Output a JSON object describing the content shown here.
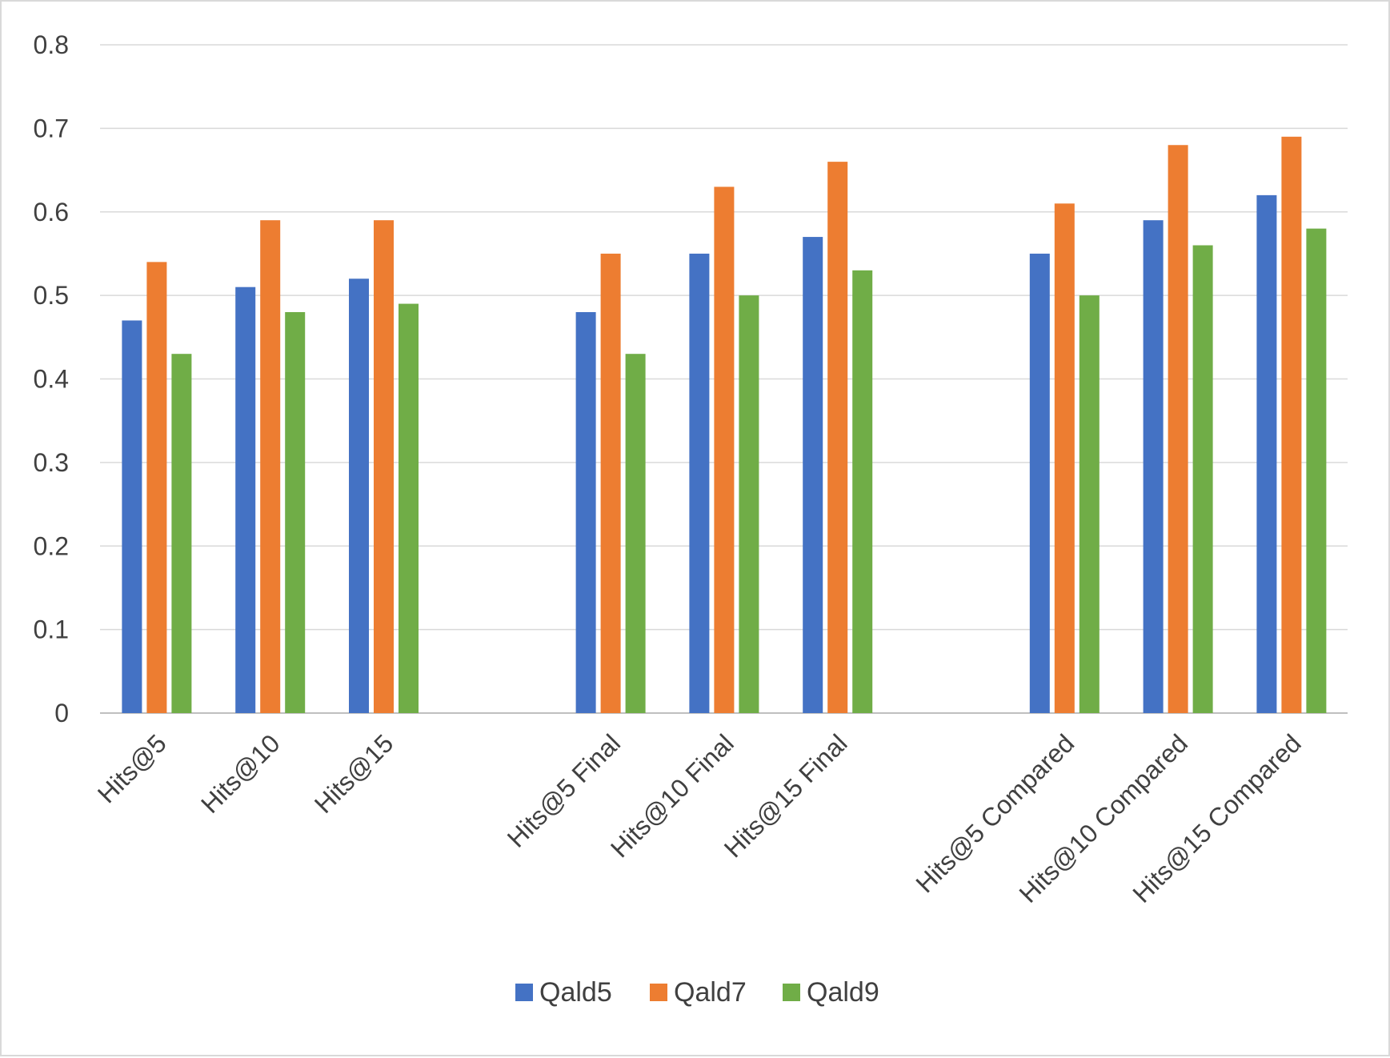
{
  "chart_data": {
    "type": "bar",
    "title": "",
    "xlabel": "",
    "ylabel": "",
    "ylim": [
      0,
      0.8
    ],
    "yticks": [
      "0",
      "0.1",
      "0.2",
      "0.3",
      "0.4",
      "0.5",
      "0.6",
      "0.7",
      "0.8"
    ],
    "grid": true,
    "legend_position": "bottom",
    "categories": [
      "Hits@5",
      "Hits@10",
      "Hits@15",
      "Hits@5 Final",
      "Hits@10 Final",
      "Hits@15 Final",
      "Hits@5 Compared",
      "Hits@10 Compared",
      "Hits@15 Compared"
    ],
    "series": [
      {
        "name": "Qald5",
        "color": "#4472c4",
        "values": [
          0.47,
          0.51,
          0.52,
          0.48,
          0.55,
          0.57,
          0.55,
          0.59,
          0.62
        ]
      },
      {
        "name": "Qald7",
        "color": "#ed7d31",
        "values": [
          0.54,
          0.59,
          0.59,
          0.55,
          0.63,
          0.66,
          0.61,
          0.68,
          0.69
        ]
      },
      {
        "name": "Qald9",
        "color": "#70ad47",
        "values": [
          0.43,
          0.48,
          0.49,
          0.43,
          0.5,
          0.53,
          0.5,
          0.56,
          0.58
        ]
      }
    ]
  }
}
